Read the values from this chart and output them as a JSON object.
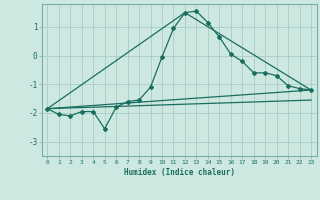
{
  "background_color": "#cde8e0",
  "grid_color": "#aaccc4",
  "line_color": "#1a6e60",
  "x_label": "Humidex (Indice chaleur)",
  "ylim": [
    -3.5,
    1.8
  ],
  "xlim": [
    -0.5,
    23.5
  ],
  "yticks": [
    -3,
    -2,
    -1,
    0,
    1
  ],
  "xticks": [
    0,
    1,
    2,
    3,
    4,
    5,
    6,
    7,
    8,
    9,
    10,
    11,
    12,
    13,
    14,
    15,
    16,
    17,
    18,
    19,
    20,
    21,
    22,
    23
  ],
  "series1_x": [
    0,
    1,
    2,
    3,
    4,
    5,
    6,
    7,
    8,
    9,
    10,
    11,
    12,
    13,
    14,
    15,
    16,
    17,
    18,
    19,
    20,
    21,
    22,
    23
  ],
  "series1_y": [
    -1.85,
    -2.05,
    -2.1,
    -1.95,
    -1.95,
    -2.55,
    -1.8,
    -1.6,
    -1.55,
    -1.1,
    -0.05,
    0.95,
    1.5,
    1.55,
    1.15,
    0.65,
    0.05,
    -0.2,
    -0.6,
    -0.6,
    -0.7,
    -1.05,
    -1.15,
    -1.2
  ],
  "series2_x": [
    0,
    23
  ],
  "series2_y": [
    -1.85,
    -1.2
  ],
  "series3_x": [
    0,
    12,
    23
  ],
  "series3_y": [
    -1.85,
    1.5,
    -1.2
  ],
  "series4_x": [
    0,
    23
  ],
  "series4_y": [
    -1.85,
    -1.55
  ]
}
